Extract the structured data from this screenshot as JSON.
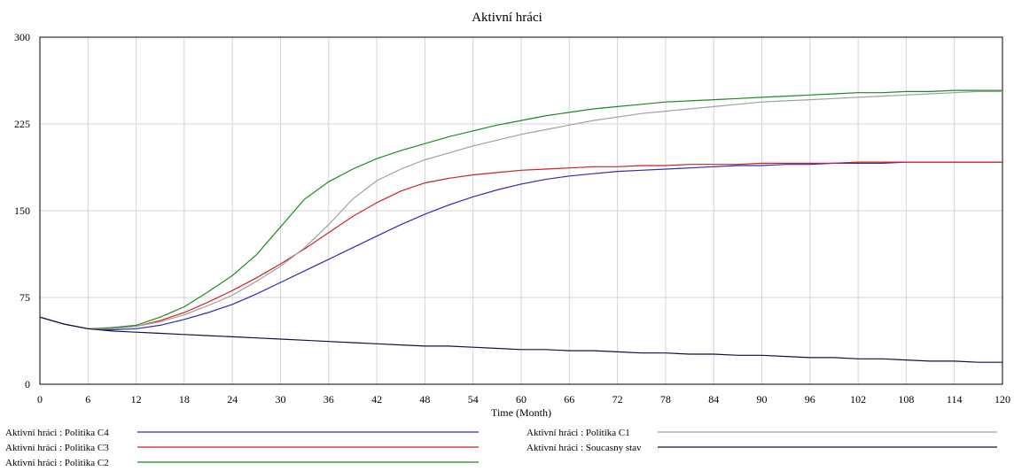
{
  "chart_data": {
    "type": "line",
    "title": "Aktivní hráci",
    "xlabel": "Time (Month)",
    "ylabel": "",
    "xlim": [
      0,
      120
    ],
    "ylim": [
      0,
      300
    ],
    "x_ticks": [
      "0",
      "6",
      "12",
      "18",
      "24",
      "30",
      "36",
      "42",
      "48",
      "54",
      "60",
      "66",
      "72",
      "78",
      "84",
      "90",
      "96",
      "102",
      "108",
      "114",
      "120"
    ],
    "y_ticks": [
      "0",
      "75",
      "150",
      "225",
      "300"
    ],
    "grid": true,
    "legend_position": "bottom",
    "x": [
      0,
      3,
      6,
      9,
      12,
      15,
      18,
      21,
      24,
      27,
      30,
      33,
      36,
      39,
      42,
      45,
      48,
      51,
      54,
      57,
      60,
      63,
      66,
      69,
      72,
      75,
      78,
      81,
      84,
      87,
      90,
      93,
      96,
      99,
      102,
      105,
      108,
      111,
      114,
      117,
      120
    ],
    "series": [
      {
        "name": "Aktivní hráci : Politika C4",
        "color": "#2b2bb5",
        "values": [
          58,
          52,
          48,
          47,
          48,
          51,
          56,
          62,
          69,
          78,
          88,
          98,
          108,
          118,
          128,
          138,
          147,
          155,
          162,
          168,
          173,
          177,
          180,
          182,
          184,
          185,
          186,
          187,
          188,
          189,
          189,
          190,
          190,
          191,
          191,
          191,
          192,
          192,
          192,
          192,
          192
        ]
      },
      {
        "name": "Aktivní hráci : Politika C3",
        "color": "#cc2222",
        "values": [
          58,
          52,
          48,
          48,
          50,
          55,
          62,
          71,
          81,
          92,
          104,
          117,
          131,
          145,
          157,
          167,
          174,
          178,
          181,
          183,
          185,
          186,
          187,
          188,
          188,
          189,
          189,
          190,
          190,
          190,
          191,
          191,
          191,
          191,
          192,
          192,
          192,
          192,
          192,
          192,
          192
        ]
      },
      {
        "name": "Aktivní hráci : Politika C2",
        "color": "#1a8a1a",
        "values": [
          58,
          52,
          48,
          49,
          51,
          58,
          67,
          80,
          94,
          112,
          136,
          160,
          175,
          186,
          195,
          202,
          208,
          214,
          219,
          224,
          228,
          232,
          235,
          238,
          240,
          242,
          244,
          245,
          246,
          247,
          248,
          249,
          250,
          251,
          252,
          252,
          253,
          253,
          254,
          254,
          254
        ]
      },
      {
        "name": "Aktivní hráci : Politika C1",
        "color": "#a0a0a0",
        "values": [
          58,
          52,
          48,
          48,
          50,
          54,
          60,
          68,
          77,
          89,
          102,
          118,
          138,
          160,
          176,
          186,
          194,
          200,
          206,
          211,
          216,
          220,
          224,
          228,
          231,
          234,
          236,
          238,
          240,
          242,
          244,
          245,
          246,
          247,
          248,
          249,
          250,
          251,
          252,
          253,
          253
        ]
      },
      {
        "name": "Aktivní hráci : Soucasny stav",
        "color": "#101040",
        "values": [
          58,
          52,
          48,
          46,
          45,
          44,
          43,
          42,
          41,
          40,
          39,
          38,
          37,
          36,
          35,
          34,
          33,
          33,
          32,
          31,
          30,
          30,
          29,
          29,
          28,
          27,
          27,
          26,
          26,
          25,
          25,
          24,
          23,
          23,
          22,
          22,
          21,
          20,
          20,
          19,
          19
        ]
      }
    ]
  }
}
